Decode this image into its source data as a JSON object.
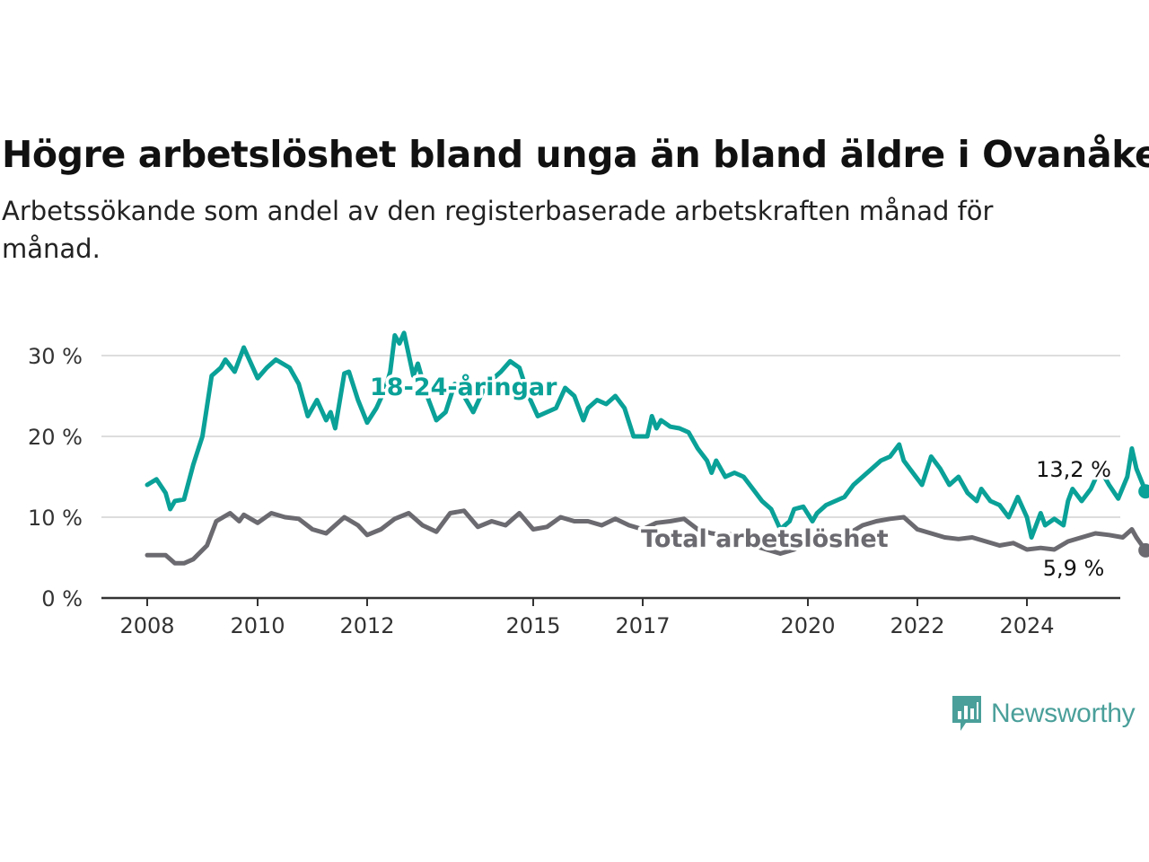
{
  "header": {
    "title": "Högre arbetslöshet bland unga än bland äldre i Ovanåker",
    "subtitle": "Arbetssökande som andel av den registerbaserade arbetskraften månad för månad."
  },
  "brand": {
    "name": "Newsworthy",
    "icon": "newsworthy-logo-icon",
    "color": "#4a9f9a"
  },
  "chart_data": {
    "type": "line",
    "title": "Högre arbetslöshet bland unga än bland äldre i Ovanåker",
    "subtitle": "Arbetssökande som andel av den registerbaserade arbetskraften månad för månad.",
    "xlim": [
      "2008-01",
      "2025-05"
    ],
    "ylim": [
      0,
      33
    ],
    "x_ticks": [
      {
        "date": "2008-01",
        "label": "2008"
      },
      {
        "date": "2010-01",
        "label": "2010"
      },
      {
        "date": "2012-01",
        "label": "2012"
      },
      {
        "date": "2015-01",
        "label": "2015"
      },
      {
        "date": "2017-01",
        "label": "2017"
      },
      {
        "date": "2020-01",
        "label": "2020"
      },
      {
        "date": "2022-01",
        "label": "2022"
      },
      {
        "date": "2024-01",
        "label": "2024"
      }
    ],
    "y_ticks": [
      {
        "value": 0,
        "label": "0 %"
      },
      {
        "value": 10,
        "label": "10 %"
      },
      {
        "value": 20,
        "label": "20 %"
      },
      {
        "value": 30,
        "label": "30 %"
      }
    ],
    "grid": true,
    "legend": "inline labels",
    "series": [
      {
        "name": "18-24-åringar",
        "color": "#0aa198",
        "end_label": "13,2 %",
        "points": [
          [
            "2008-01",
            14.0
          ],
          [
            "2008-03",
            14.7
          ],
          [
            "2008-05",
            13.0
          ],
          [
            "2008-06",
            11.0
          ],
          [
            "2008-07",
            12.0
          ],
          [
            "2008-09",
            12.2
          ],
          [
            "2008-11",
            16.5
          ],
          [
            "2009-01",
            20.0
          ],
          [
            "2009-03",
            27.5
          ],
          [
            "2009-05",
            28.5
          ],
          [
            "2009-06",
            29.5
          ],
          [
            "2009-08",
            28.0
          ],
          [
            "2009-10",
            31.0
          ],
          [
            "2010-01",
            27.2
          ],
          [
            "2010-03",
            28.5
          ],
          [
            "2010-05",
            29.5
          ],
          [
            "2010-08",
            28.5
          ],
          [
            "2010-10",
            26.5
          ],
          [
            "2010-12",
            22.5
          ],
          [
            "2011-02",
            24.5
          ],
          [
            "2011-04",
            22.0
          ],
          [
            "2011-05",
            23.0
          ],
          [
            "2011-06",
            21.0
          ],
          [
            "2011-08",
            27.8
          ],
          [
            "2011-09",
            28.0
          ],
          [
            "2011-11",
            24.5
          ],
          [
            "2012-01",
            21.7
          ],
          [
            "2012-03",
            23.5
          ],
          [
            "2012-05",
            26.0
          ],
          [
            "2012-06",
            28.0
          ],
          [
            "2012-07",
            32.5
          ],
          [
            "2012-08",
            31.5
          ],
          [
            "2012-09",
            32.8
          ],
          [
            "2012-11",
            27.5
          ],
          [
            "2012-12",
            29.0
          ],
          [
            "2013-02",
            25.0
          ],
          [
            "2013-04",
            22.0
          ],
          [
            "2013-06",
            23.0
          ],
          [
            "2013-08",
            26.5
          ],
          [
            "2013-10",
            25.0
          ],
          [
            "2013-12",
            23.0
          ],
          [
            "2014-02",
            25.5
          ],
          [
            "2014-04",
            27.0
          ],
          [
            "2014-06",
            28.0
          ],
          [
            "2014-08",
            29.3
          ],
          [
            "2014-10",
            28.5
          ],
          [
            "2014-12",
            25.0
          ],
          [
            "2015-02",
            22.5
          ],
          [
            "2015-04",
            23.0
          ],
          [
            "2015-06",
            23.5
          ],
          [
            "2015-08",
            26.0
          ],
          [
            "2015-10",
            25.0
          ],
          [
            "2015-12",
            22.0
          ],
          [
            "2016-01",
            23.5
          ],
          [
            "2016-03",
            24.5
          ],
          [
            "2016-05",
            24.0
          ],
          [
            "2016-07",
            25.0
          ],
          [
            "2016-09",
            23.5
          ],
          [
            "2016-11",
            20.0
          ],
          [
            "2017-02",
            20.0
          ],
          [
            "2017-03",
            22.5
          ],
          [
            "2017-04",
            21.0
          ],
          [
            "2017-05",
            22.0
          ],
          [
            "2017-07",
            21.2
          ],
          [
            "2017-09",
            21.0
          ],
          [
            "2017-11",
            20.5
          ],
          [
            "2018-01",
            18.5
          ],
          [
            "2018-03",
            17.0
          ],
          [
            "2018-04",
            15.5
          ],
          [
            "2018-05",
            17.0
          ],
          [
            "2018-07",
            15.0
          ],
          [
            "2018-09",
            15.5
          ],
          [
            "2018-11",
            15.0
          ],
          [
            "2019-01",
            13.5
          ],
          [
            "2019-03",
            12.0
          ],
          [
            "2019-05",
            11.0
          ],
          [
            "2019-07",
            8.5
          ],
          [
            "2019-09",
            9.5
          ],
          [
            "2019-10",
            11.0
          ],
          [
            "2019-12",
            11.3
          ],
          [
            "2020-02",
            9.5
          ],
          [
            "2020-03",
            10.5
          ],
          [
            "2020-05",
            11.5
          ],
          [
            "2020-07",
            12.0
          ],
          [
            "2020-09",
            12.5
          ],
          [
            "2020-11",
            14.0
          ],
          [
            "2021-01",
            15.0
          ],
          [
            "2021-03",
            16.0
          ],
          [
            "2021-05",
            17.0
          ],
          [
            "2021-07",
            17.5
          ],
          [
            "2021-09",
            19.0
          ],
          [
            "2021-10",
            17.0
          ],
          [
            "2021-12",
            15.5
          ],
          [
            "2022-02",
            14.0
          ],
          [
            "2022-04",
            17.5
          ],
          [
            "2022-06",
            16.0
          ],
          [
            "2022-08",
            14.0
          ],
          [
            "2022-10",
            15.0
          ],
          [
            "2022-12",
            13.0
          ],
          [
            "2023-02",
            12.0
          ],
          [
            "2023-03",
            13.5
          ],
          [
            "2023-05",
            12.0
          ],
          [
            "2023-07",
            11.5
          ],
          [
            "2023-09",
            10.0
          ],
          [
            "2023-11",
            12.5
          ],
          [
            "2024-01",
            10.0
          ],
          [
            "2024-02",
            7.5
          ],
          [
            "2024-04",
            10.5
          ],
          [
            "2024-05",
            9.0
          ],
          [
            "2024-07",
            9.8
          ],
          [
            "2024-09",
            9.0
          ],
          [
            "2024-10",
            12.0
          ],
          [
            "2024-11",
            13.5
          ],
          [
            "2025-01",
            12.0
          ],
          [
            "2025-03",
            13.5
          ],
          [
            "2025-05",
            16.0
          ],
          [
            "2025-07",
            14.0
          ],
          [
            "2025-09",
            12.3
          ],
          [
            "2025-11",
            15.0
          ],
          [
            "2025-12",
            18.5
          ],
          [
            "2026-01",
            16.0
          ],
          [
            "2026-03",
            13.2
          ]
        ]
      },
      {
        "name": "Total arbetslöshet",
        "color": "#6b6a70",
        "end_label": "5,9 %",
        "points": [
          [
            "2008-01",
            5.3
          ],
          [
            "2008-05",
            5.3
          ],
          [
            "2008-07",
            4.3
          ],
          [
            "2008-09",
            4.3
          ],
          [
            "2008-11",
            4.8
          ],
          [
            "2009-02",
            6.5
          ],
          [
            "2009-04",
            9.5
          ],
          [
            "2009-07",
            10.5
          ],
          [
            "2009-09",
            9.5
          ],
          [
            "2009-10",
            10.3
          ],
          [
            "2010-01",
            9.3
          ],
          [
            "2010-04",
            10.5
          ],
          [
            "2010-07",
            10.0
          ],
          [
            "2010-10",
            9.8
          ],
          [
            "2011-01",
            8.5
          ],
          [
            "2011-04",
            8.0
          ],
          [
            "2011-07",
            9.5
          ],
          [
            "2011-08",
            10.0
          ],
          [
            "2011-11",
            9.0
          ],
          [
            "2012-01",
            7.8
          ],
          [
            "2012-04",
            8.5
          ],
          [
            "2012-07",
            9.8
          ],
          [
            "2012-10",
            10.5
          ],
          [
            "2013-01",
            9.0
          ],
          [
            "2013-04",
            8.2
          ],
          [
            "2013-07",
            10.5
          ],
          [
            "2013-10",
            10.8
          ],
          [
            "2014-01",
            8.8
          ],
          [
            "2014-04",
            9.5
          ],
          [
            "2014-07",
            9.0
          ],
          [
            "2014-10",
            10.5
          ],
          [
            "2015-01",
            8.5
          ],
          [
            "2015-04",
            8.8
          ],
          [
            "2015-07",
            10.0
          ],
          [
            "2015-10",
            9.5
          ],
          [
            "2016-01",
            9.5
          ],
          [
            "2016-04",
            9.0
          ],
          [
            "2016-07",
            9.8
          ],
          [
            "2016-10",
            9.0
          ],
          [
            "2017-01",
            8.5
          ],
          [
            "2017-04",
            9.3
          ],
          [
            "2017-07",
            9.5
          ],
          [
            "2017-10",
            9.8
          ],
          [
            "2018-01",
            8.5
          ],
          [
            "2018-04",
            8.0
          ],
          [
            "2018-07",
            7.8
          ],
          [
            "2018-10",
            8.0
          ],
          [
            "2019-01",
            6.5
          ],
          [
            "2019-04",
            6.0
          ],
          [
            "2019-07",
            5.5
          ],
          [
            "2019-10",
            6.0
          ],
          [
            "2020-01",
            7.0
          ],
          [
            "2020-04",
            7.5
          ],
          [
            "2020-07",
            7.5
          ],
          [
            "2020-10",
            8.0
          ],
          [
            "2021-01",
            9.0
          ],
          [
            "2021-04",
            9.5
          ],
          [
            "2021-07",
            9.8
          ],
          [
            "2021-10",
            10.0
          ],
          [
            "2022-01",
            8.5
          ],
          [
            "2022-04",
            8.0
          ],
          [
            "2022-07",
            7.5
          ],
          [
            "2022-10",
            7.3
          ],
          [
            "2023-01",
            7.5
          ],
          [
            "2023-04",
            7.0
          ],
          [
            "2023-07",
            6.5
          ],
          [
            "2023-10",
            6.8
          ],
          [
            "2024-01",
            6.0
          ],
          [
            "2024-04",
            6.2
          ],
          [
            "2024-07",
            6.0
          ],
          [
            "2024-10",
            7.0
          ],
          [
            "2025-01",
            7.5
          ],
          [
            "2025-04",
            8.0
          ],
          [
            "2025-07",
            7.8
          ],
          [
            "2025-10",
            7.5
          ],
          [
            "2025-12",
            8.5
          ],
          [
            "2026-01",
            7.5
          ],
          [
            "2026-03",
            5.9
          ]
        ]
      }
    ]
  }
}
